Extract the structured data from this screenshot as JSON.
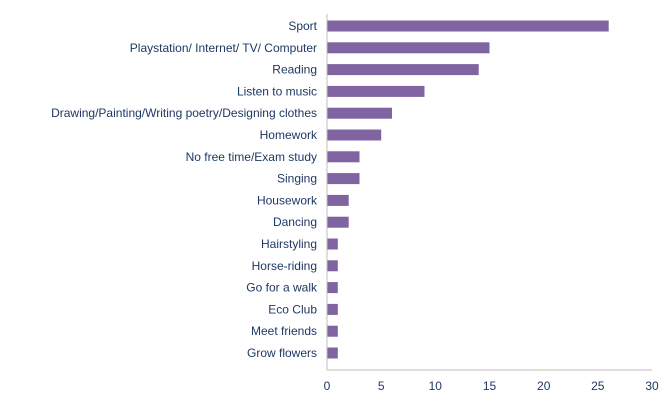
{
  "chart_data": {
    "type": "bar",
    "orientation": "horizontal",
    "categories": [
      "Sport",
      "Playstation/ Internet/ TV/ Computer",
      "Reading",
      "Listen to music",
      "Drawing/Painting/Writing poetry/Designing clothes",
      "Homework",
      "No free time/Exam study",
      "Singing",
      "Housework",
      "Dancing",
      "Hairstyling",
      "Horse-riding",
      "Go for a walk",
      "Eco Club",
      "Meet friends",
      "Grow flowers"
    ],
    "values": [
      26,
      15,
      14,
      9,
      6,
      5,
      3,
      3,
      2,
      2,
      1,
      1,
      1,
      1,
      1,
      1
    ],
    "xlim": [
      0,
      30
    ],
    "xticks": [
      "0",
      "5",
      "10",
      "15",
      "20",
      "25",
      "30"
    ],
    "title": "",
    "xlabel": "",
    "ylabel": "",
    "grid": false,
    "legend": "none",
    "bar_color": "#8064a2"
  }
}
